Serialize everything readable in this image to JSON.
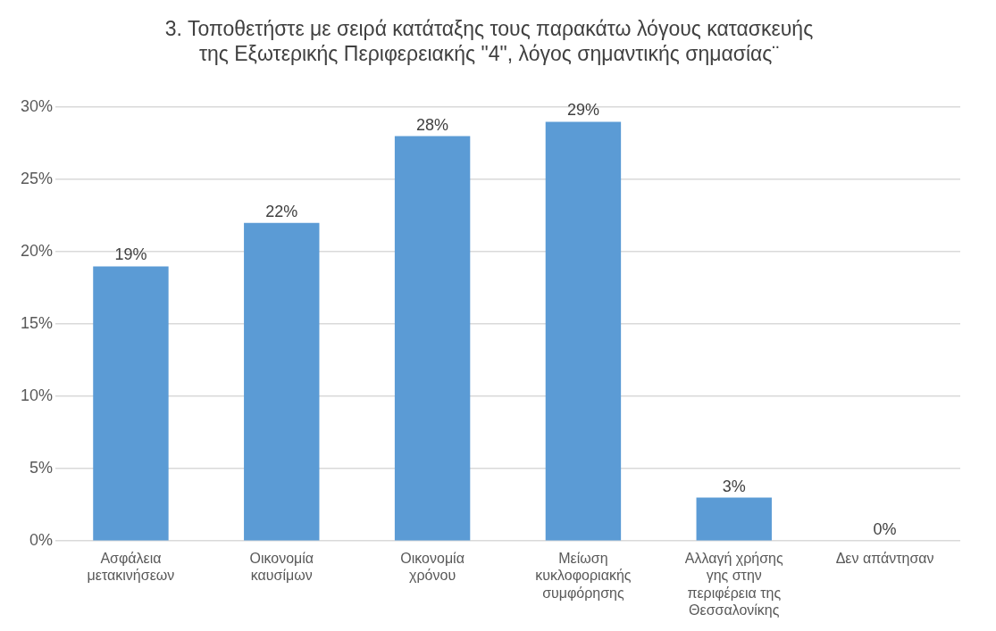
{
  "chart_data": {
    "type": "bar",
    "title": "3. Τοποθετήστε με σειρά κατάταξης τους παρακάτω λόγους κατασκευής της Εξωτερικής Περιφερειακής \"4\", λόγος σημαντικής σημασίας¨",
    "categories": [
      "Ασφάλεια μετακινήσεων",
      "Οικονομία καυσίμων",
      "Οικονομία χρόνου",
      "Μείωση κυκλοφοριακής συμφόρησης",
      "Αλλαγή χρήσης γης στην περιφέρεια της Θεσσαλονίκης",
      "Δεν απάντησαν"
    ],
    "values": [
      19,
      22,
      28,
      29,
      3,
      0
    ],
    "value_labels": [
      "19%",
      "22%",
      "28%",
      "29%",
      "3%",
      "0%"
    ],
    "color": "#5b9bd5",
    "ylim": [
      0,
      30
    ],
    "yticks": [
      {
        "value": 0,
        "label": "0%"
      },
      {
        "value": 5,
        "label": "5%"
      },
      {
        "value": 10,
        "label": "10%"
      },
      {
        "value": 15,
        "label": "15%"
      },
      {
        "value": 20,
        "label": "20%"
      },
      {
        "value": 25,
        "label": "25%"
      },
      {
        "value": 30,
        "label": "30%"
      }
    ],
    "grid": "y",
    "legend": false
  }
}
